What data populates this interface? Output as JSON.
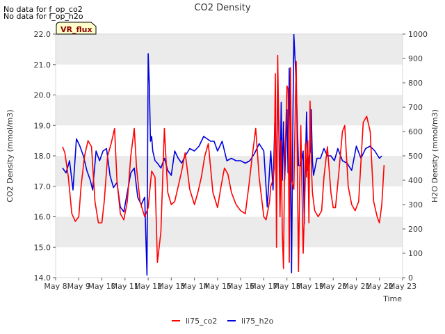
{
  "messages": [
    "No data for f_op_co2",
    "No data for f_op_h2o"
  ],
  "badge": "VR_flux",
  "chart_data": {
    "type": "line",
    "title": "CO2 Density",
    "xlabel": "Time",
    "ylabel": "CO2 Density (mmol/m3)",
    "y2label": "H2O Density (mmol/m3)",
    "xlim": [
      8,
      23
    ],
    "ylim": [
      14.0,
      22.0
    ],
    "y2lim": [
      0,
      1000
    ],
    "x_ticks": [
      8,
      9,
      10,
      11,
      12,
      13,
      14,
      15,
      16,
      17,
      18,
      19,
      20,
      21,
      22,
      23
    ],
    "x_tick_labels": [
      "May 8",
      "May 9",
      "May 10",
      "May 11",
      "May 12",
      "May 13",
      "May 14",
      "May 15",
      "May 16",
      "May 17",
      "May 18",
      "May 19",
      "May 20",
      "May 21",
      "May 22",
      "May 23"
    ],
    "y_ticks": [
      14.0,
      15.0,
      16.0,
      17.0,
      18.0,
      19.0,
      20.0,
      21.0,
      22.0
    ],
    "y_tick_labels": [
      "14.0",
      "15.0",
      "16.0",
      "17.0",
      "18.0",
      "19.0",
      "20.0",
      "21.0",
      "22.0"
    ],
    "y2_ticks": [
      0,
      100,
      200,
      300,
      400,
      500,
      600,
      700,
      800,
      900,
      1000
    ],
    "y2_tick_labels": [
      "0",
      "100",
      "200",
      "300",
      "400",
      "500",
      "600",
      "700",
      "800",
      "900",
      "1000"
    ],
    "grid": "horizontal bands",
    "legend_position": "bottom-center",
    "colors": {
      "li75_co2": "#ff0000",
      "li75_h2o": "#0000dd",
      "band": "#ebebeb",
      "badge_bg": "#ffffcc",
      "badge_text": "#8b0000"
    },
    "series": [
      {
        "name": "li75_co2",
        "axis": "left",
        "x": [
          8.3,
          8.4,
          8.55,
          8.7,
          8.85,
          9.0,
          9.1,
          9.25,
          9.4,
          9.55,
          9.7,
          9.85,
          10.0,
          10.1,
          10.25,
          10.4,
          10.55,
          10.65,
          10.8,
          10.95,
          11.1,
          11.25,
          11.4,
          11.5,
          11.65,
          11.85,
          12.0,
          12.15,
          12.3,
          12.4,
          12.55,
          12.7,
          12.85,
          13.0,
          13.15,
          13.3,
          13.45,
          13.6,
          13.8,
          14.0,
          14.15,
          14.3,
          14.45,
          14.6,
          14.8,
          15.0,
          15.15,
          15.3,
          15.45,
          15.6,
          15.8,
          16.0,
          16.2,
          16.35,
          16.5,
          16.65,
          16.8,
          17.0,
          17.1,
          17.25,
          17.3,
          17.4,
          17.45,
          17.5,
          17.55,
          17.6,
          17.7,
          17.75,
          17.8,
          17.85,
          17.9,
          17.95,
          18.0,
          18.05,
          18.1,
          18.15,
          18.2,
          18.3,
          18.4,
          18.5,
          18.55,
          18.6,
          18.7,
          18.75,
          18.8,
          18.85,
          18.9,
          18.95,
          19.0,
          19.05,
          19.1,
          19.2,
          19.35,
          19.5,
          19.6,
          19.75,
          19.9,
          20.0,
          20.1,
          20.25,
          20.4,
          20.5,
          20.65,
          20.8,
          20.95,
          21.1,
          21.2,
          21.3,
          21.45,
          21.6,
          21.75,
          21.9,
          22.0,
          22.1,
          22.2
        ],
        "y": [
          18.3,
          18.1,
          17.3,
          16.1,
          15.85,
          16.0,
          17.0,
          18.0,
          18.5,
          18.3,
          16.5,
          15.8,
          15.8,
          16.5,
          18.0,
          18.4,
          18.9,
          17.2,
          16.1,
          15.9,
          16.5,
          18.0,
          18.9,
          17.6,
          16.5,
          16.0,
          16.3,
          17.5,
          17.3,
          14.5,
          15.5,
          18.9,
          16.8,
          16.4,
          16.5,
          17.0,
          17.5,
          18.1,
          16.9,
          16.4,
          16.8,
          17.3,
          18.0,
          18.4,
          16.8,
          16.3,
          17.0,
          17.6,
          17.4,
          16.8,
          16.4,
          16.2,
          16.1,
          17.0,
          18.0,
          18.9,
          17.3,
          16.0,
          15.9,
          16.5,
          17.0,
          17.2,
          17.6,
          20.7,
          15.0,
          21.3,
          16.0,
          18.5,
          15.5,
          14.3,
          17.7,
          18.8,
          20.3,
          20.2,
          14.5,
          20.9,
          17.2,
          16.9,
          21.1,
          14.2,
          17.0,
          19.0,
          14.8,
          16.0,
          18.4,
          17.3,
          18.5,
          15.8,
          19.8,
          17.8,
          16.8,
          16.2,
          16.0,
          16.2,
          17.3,
          18.3,
          16.8,
          16.3,
          16.3,
          17.5,
          18.8,
          19.0,
          17.0,
          16.4,
          16.2,
          16.5,
          17.8,
          19.1,
          19.3,
          18.8,
          16.5,
          16.0,
          15.8,
          16.4,
          17.7
        ]
      },
      {
        "name": "li75_h2o",
        "axis": "right",
        "x": [
          8.3,
          8.45,
          8.6,
          8.75,
          8.9,
          9.05,
          9.2,
          9.35,
          9.5,
          9.6,
          9.75,
          9.9,
          10.05,
          10.2,
          10.35,
          10.5,
          10.65,
          10.8,
          10.95,
          11.1,
          11.25,
          11.4,
          11.55,
          11.7,
          11.85,
          11.95,
          12.0,
          12.05,
          12.1,
          12.15,
          12.2,
          12.3,
          12.4,
          12.55,
          12.7,
          12.85,
          13.0,
          13.15,
          13.3,
          13.45,
          13.6,
          13.8,
          14.0,
          14.2,
          14.4,
          14.55,
          14.7,
          14.85,
          15.0,
          15.2,
          15.4,
          15.6,
          15.8,
          16.0,
          16.2,
          16.4,
          16.6,
          16.8,
          17.0,
          17.15,
          17.3,
          17.4,
          17.5,
          17.55,
          17.6,
          17.65,
          17.7,
          17.75,
          17.8,
          17.85,
          17.9,
          17.95,
          18.0,
          18.05,
          18.1,
          18.15,
          18.2,
          18.25,
          18.3,
          18.4,
          18.5,
          18.6,
          18.7,
          18.75,
          18.8,
          18.85,
          18.9,
          18.95,
          19.0,
          19.05,
          19.1,
          19.15,
          19.3,
          19.45,
          19.6,
          19.75,
          19.9,
          20.05,
          20.2,
          20.4,
          20.6,
          20.8,
          21.0,
          21.2,
          21.4,
          21.6,
          21.8,
          22.0,
          22.1
        ],
        "y": [
          450,
          430,
          480,
          360,
          570,
          540,
          500,
          440,
          400,
          360,
          520,
          480,
          520,
          530,
          420,
          370,
          390,
          290,
          270,
          350,
          430,
          450,
          330,
          300,
          330,
          10,
          920,
          800,
          560,
          580,
          520,
          480,
          470,
          450,
          490,
          440,
          420,
          520,
          490,
          470,
          500,
          530,
          520,
          540,
          580,
          570,
          560,
          560,
          520,
          560,
          480,
          490,
          480,
          480,
          470,
          480,
          510,
          550,
          520,
          290,
          520,
          360,
          720,
          300,
          780,
          640,
          350,
          720,
          400,
          640,
          400,
          530,
          690,
          430,
          860,
          500,
          20,
          580,
          1000,
          800,
          460,
          460,
          520,
          220,
          470,
          680,
          440,
          490,
          520,
          690,
          480,
          420,
          490,
          490,
          530,
          500,
          500,
          480,
          530,
          480,
          470,
          440,
          540,
          490,
          530,
          540,
          520,
          490,
          500
        ]
      }
    ]
  }
}
